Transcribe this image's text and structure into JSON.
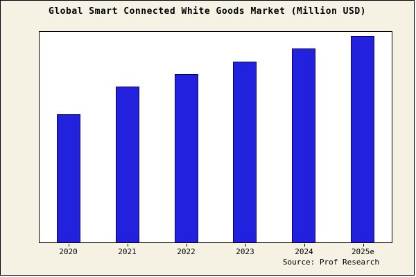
{
  "page": {
    "title": "Global Smart Connected White Goods Market (Million USD)",
    "source": "Source: Prof Research",
    "background_color": "#f5f2e4",
    "plot_background_color": "#ffffff"
  },
  "colors": {
    "bar_fill": "#2121de",
    "bar_border": "#000066",
    "frame_border": "#000000"
  },
  "chart_data": {
    "type": "bar",
    "title": "Global Smart Connected White Goods Market (Million USD)",
    "categories": [
      "2020",
      "2021",
      "2022",
      "2023",
      "2024",
      "2025e"
    ],
    "values": [
      61,
      74,
      80,
      86,
      92,
      98
    ],
    "xlabel": "",
    "ylabel": "",
    "ylim": [
      0,
      100
    ],
    "grid": false,
    "legend": false,
    "annotation": "Source: Prof Research",
    "axis_note": "y-axis has no tick labels; values estimated as percent of plot height"
  }
}
